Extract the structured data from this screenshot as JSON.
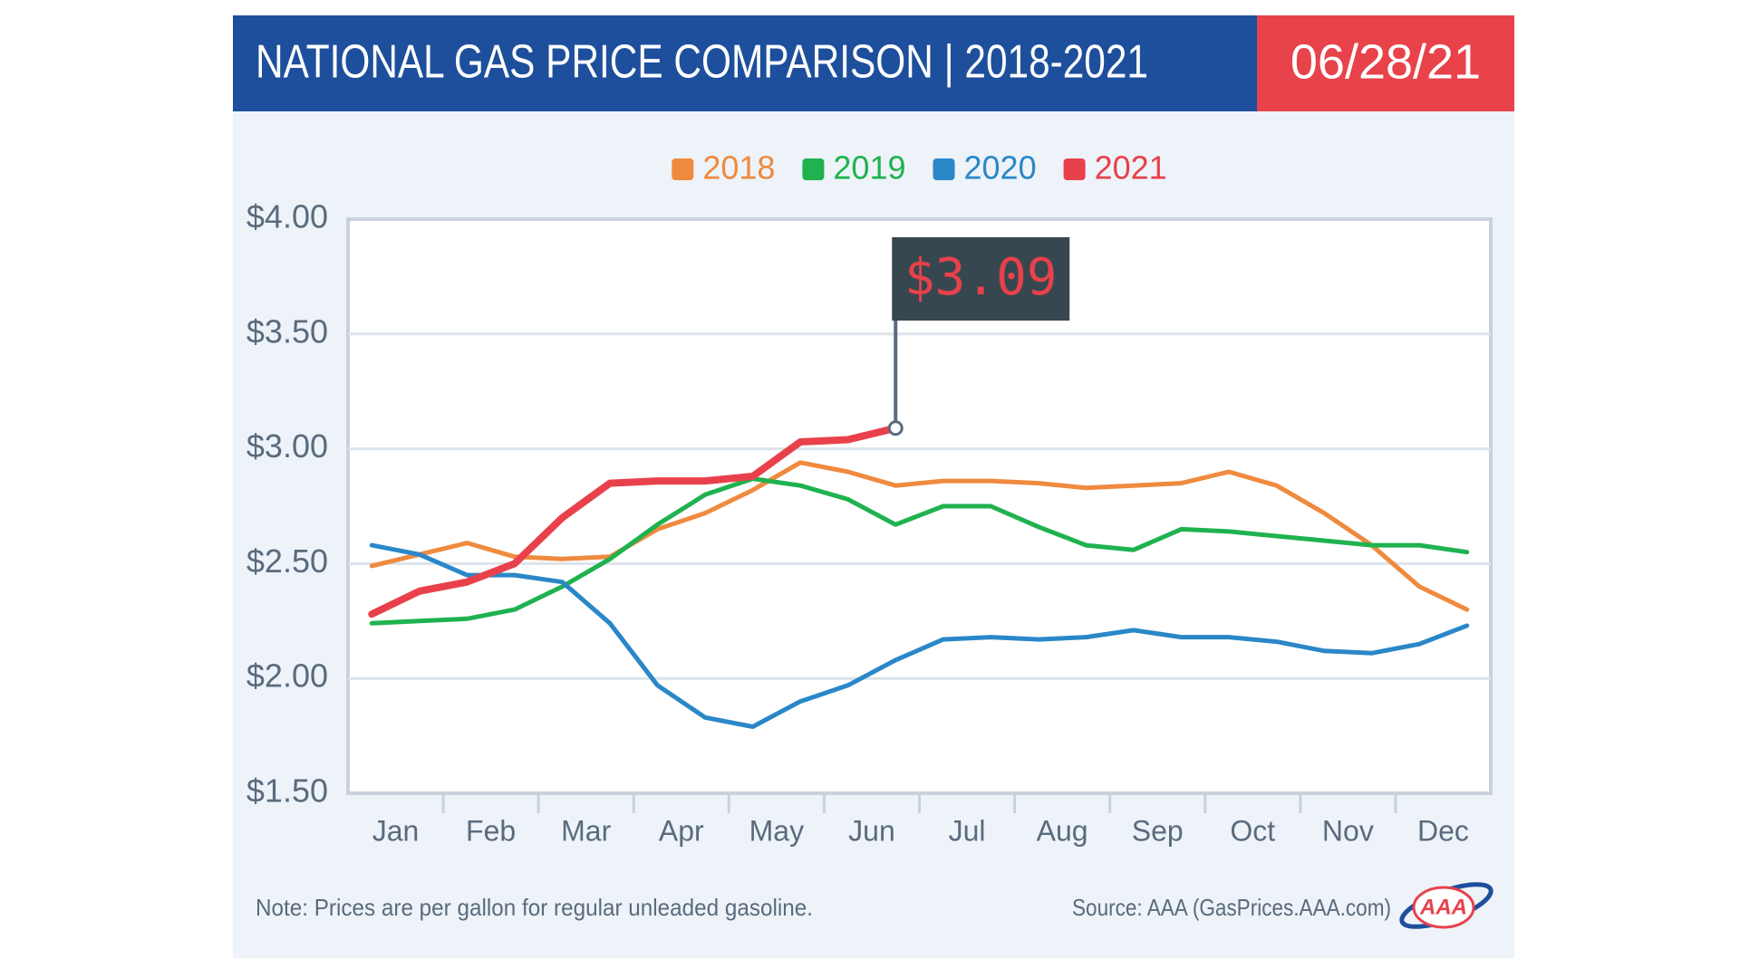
{
  "chart_data": {
    "type": "line",
    "title": "NATIONAL GAS PRICE COMPARISON | 2018-2021",
    "date": "06/28/21",
    "categories": [
      "Jan",
      null,
      "Feb",
      null,
      "Mar",
      null,
      "Apr",
      null,
      "May",
      null,
      "Jun",
      null,
      "Jul",
      null,
      "Aug",
      null,
      "Sep",
      null,
      "Oct",
      null,
      "Nov",
      null,
      "Dec",
      null
    ],
    "series": [
      {
        "name": "2018",
        "color": "#ef8a3e",
        "values": [
          2.49,
          2.54,
          2.59,
          2.53,
          2.52,
          2.53,
          2.65,
          2.72,
          2.82,
          2.94,
          2.9,
          2.84,
          2.86,
          2.86,
          2.85,
          2.83,
          2.84,
          2.85,
          2.9,
          2.84,
          2.72,
          2.58,
          2.4,
          2.3
        ]
      },
      {
        "name": "2019",
        "color": "#1fb24f",
        "values": [
          2.24,
          2.25,
          2.26,
          2.3,
          2.4,
          2.52,
          2.67,
          2.8,
          2.87,
          2.84,
          2.78,
          2.67,
          2.75,
          2.75,
          2.66,
          2.58,
          2.56,
          2.65,
          2.64,
          2.62,
          2.6,
          2.58,
          2.58,
          2.55
        ]
      },
      {
        "name": "2020",
        "color": "#2a87c8",
        "values": [
          2.58,
          2.54,
          2.45,
          2.45,
          2.42,
          2.24,
          1.97,
          1.83,
          1.79,
          1.9,
          1.97,
          2.08,
          2.17,
          2.18,
          2.17,
          2.18,
          2.21,
          2.18,
          2.18,
          2.16,
          2.12,
          2.11,
          2.15,
          2.23
        ]
      },
      {
        "name": "2021",
        "color": "#e8414b",
        "values": [
          2.28,
          2.38,
          2.42,
          2.5,
          2.7,
          2.85,
          2.86,
          2.86,
          2.88,
          3.03,
          3.04,
          3.09,
          null,
          null,
          null,
          null,
          null,
          null,
          null,
          null,
          null,
          null,
          null,
          null
        ]
      }
    ],
    "annotation": "$3.09",
    "ylim": [
      1.5,
      4.0
    ],
    "yticks": [
      {
        "value": 1.5,
        "label": "$1.50"
      },
      {
        "value": 2.0,
        "label": "$2.00"
      },
      {
        "value": 2.5,
        "label": "$2.50"
      },
      {
        "value": 3.0,
        "label": "$3.00"
      },
      {
        "value": 3.5,
        "label": "$3.50"
      },
      {
        "value": 4.0,
        "label": "$4.00"
      }
    ],
    "grid": true,
    "note": "Note: Prices are per gallon for regular unleaded gasoline.",
    "source": "Source: AAA (GasPrices.AAA.com)",
    "logo": "AAA"
  }
}
